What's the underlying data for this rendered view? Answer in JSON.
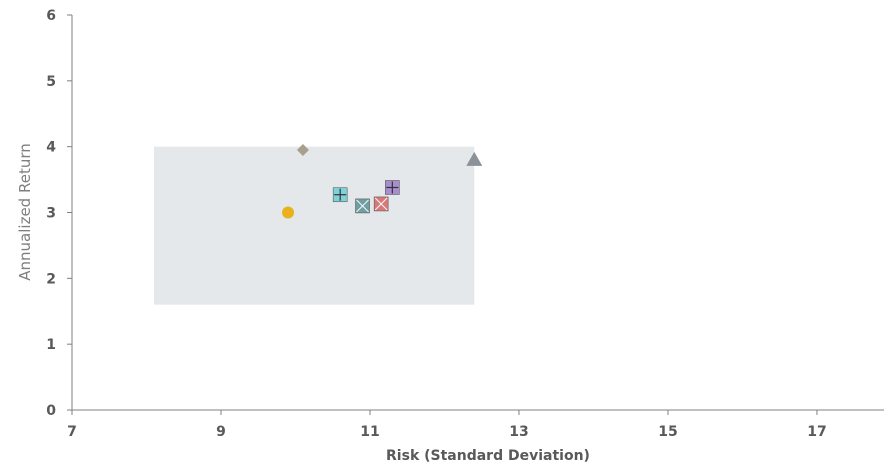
{
  "chart_data": {
    "type": "scatter",
    "title": "",
    "xlabel": "Risk (Standard Deviation)",
    "ylabel": "Annualized Return",
    "xlim": [
      7,
      17.9
    ],
    "ylim": [
      0,
      6
    ],
    "xticks": [
      7,
      9,
      11,
      13,
      15,
      17
    ],
    "yticks": [
      0,
      1,
      2,
      3,
      4,
      5,
      6
    ],
    "grid": false,
    "legend": "none",
    "region": {
      "x": [
        8.1,
        12.4
      ],
      "y": [
        1.6,
        4.0
      ],
      "color": "#e4e8ea"
    },
    "points": [
      {
        "x": 10.1,
        "y": 3.95,
        "marker": "diamond",
        "color": "#a89f8c"
      },
      {
        "x": 12.4,
        "y": 3.8,
        "marker": "triangle",
        "color": "#8c9299"
      },
      {
        "x": 9.9,
        "y": 3.0,
        "marker": "circle",
        "color": "#e8b21c"
      },
      {
        "x": 10.6,
        "y": 3.27,
        "marker": "square-plus",
        "color": "#7fd3d8"
      },
      {
        "x": 10.9,
        "y": 3.1,
        "marker": "square-x",
        "color": "#6f9fa3"
      },
      {
        "x": 11.3,
        "y": 3.38,
        "marker": "square-plus",
        "color": "#a88ecf"
      },
      {
        "x": 11.15,
        "y": 3.13,
        "marker": "square-x",
        "color": "#d9787a"
      }
    ]
  }
}
